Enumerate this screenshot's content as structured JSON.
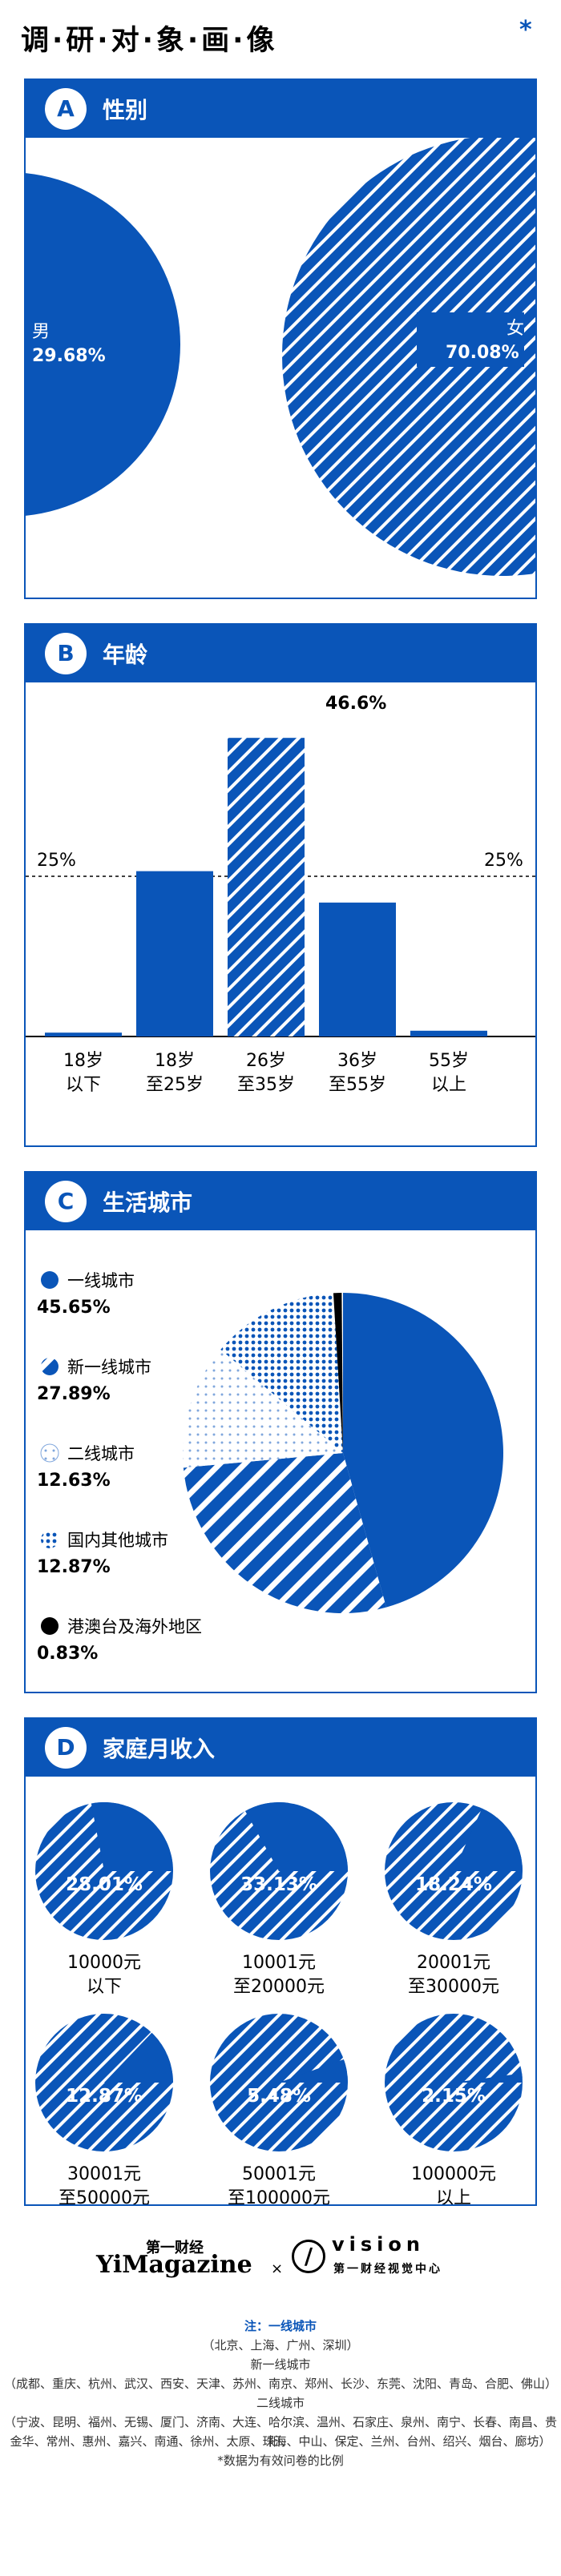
{
  "header": {
    "title": "调·研·对·象·画·像",
    "star": "*"
  },
  "colors": {
    "accent": "#0a55b8",
    "black": "#000000",
    "white": "#ffffff"
  },
  "sections": {
    "gender": {
      "letter": "A",
      "title": "性别"
    },
    "age": {
      "letter": "B",
      "title": "年龄"
    },
    "city": {
      "letter": "C",
      "title": "生活城市"
    },
    "income": {
      "letter": "D",
      "title": "家庭月收入"
    }
  },
  "chart_data": [
    {
      "type": "bubble",
      "section": "性别",
      "items": [
        {
          "label": "男",
          "value_label": "29.68%",
          "value": 29.68
        },
        {
          "label": "女",
          "value_label": "70.08%",
          "value": 70.08
        }
      ]
    },
    {
      "type": "bar",
      "section": "年龄",
      "categories": [
        [
          "18岁",
          "以下"
        ],
        [
          "18岁",
          "至25岁"
        ],
        [
          "26岁",
          "至35岁"
        ],
        [
          "36岁",
          "至55岁"
        ],
        [
          "55岁",
          "以上"
        ]
      ],
      "values": [
        0.6,
        25.8,
        46.6,
        20.9,
        0.9
      ],
      "highlight_label": "46.6%",
      "reference_line": {
        "value": 25,
        "label": "25%"
      },
      "ylim": [
        0,
        50
      ]
    },
    {
      "type": "pie",
      "section": "生活城市",
      "legend": [
        {
          "name": "一线城市",
          "value_label": "45.65%",
          "value": 45.65,
          "pattern": "solid"
        },
        {
          "name": "新一线城市",
          "value_label": "27.89%",
          "value": 27.89,
          "pattern": "stripes"
        },
        {
          "name": "二线城市",
          "value_label": "12.63%",
          "value": 12.63,
          "pattern": "light-dots"
        },
        {
          "name": "国内其他城市",
          "value_label": "12.87%",
          "value": 12.87,
          "pattern": "dots"
        },
        {
          "name": "港澳台及海外地区",
          "value_label": "0.83%",
          "value": 0.83,
          "pattern": "black"
        }
      ]
    },
    {
      "type": "pie",
      "section": "家庭月收入",
      "items": [
        {
          "label": [
            "10000元",
            "以下"
          ],
          "value_label": "28.01%",
          "value": 28.01
        },
        {
          "label": [
            "10001元",
            "至20000元"
          ],
          "value_label": "33.13%",
          "value": 33.13
        },
        {
          "label": [
            "20001元",
            "至30000元"
          ],
          "value_label": "18.24%",
          "value": 18.24
        },
        {
          "label": [
            "30001元",
            "至50000元"
          ],
          "value_label": "12.87%",
          "value": 12.87
        },
        {
          "label": [
            "50001元",
            "至100000元"
          ],
          "value_label": "5.48%",
          "value": 5.48
        },
        {
          "label": [
            "100000元",
            "以上"
          ],
          "value_label": "2.15%",
          "value": 2.15
        }
      ]
    }
  ],
  "footer": {
    "logo1_cn": "第一财经",
    "logo1_en": "YiMagazine",
    "times": "×",
    "logo2_mark": "/",
    "logo2_en": "vision",
    "logo2_cn": "第一财经视觉中心",
    "notes": [
      "注：一线城市",
      "（北京、上海、广州、深圳）",
      "新一线城市",
      "（成都、重庆、杭州、武汉、西安、天津、苏州、南京、郑州、长沙、东莞、沈阳、青岛、合肥、佛山）",
      "二线城市",
      "（宁波、昆明、福州、无锡、厦门、济南、大连、哈尔滨、温州、石家庄、泉州、南宁、长春、南昌、贵阳、",
      "金华、常州、惠州、嘉兴、南通、徐州、太原、珠海、中山、保定、兰州、台州、绍兴、烟台、廊坊）",
      "*数据为有效问卷的比例"
    ]
  }
}
